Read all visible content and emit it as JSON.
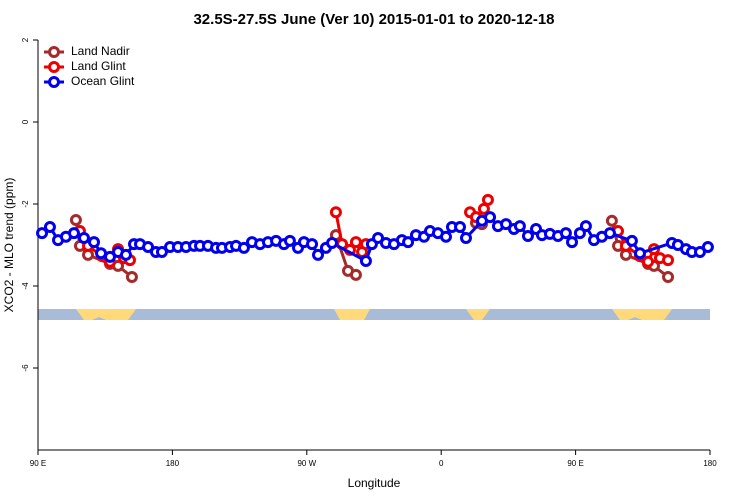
{
  "chart_data": {
    "type": "line",
    "title": "32.5S-27.5S June (Ver 10)   2015-01-01 to 2020-12-18",
    "xlabel": "Longitude",
    "ylabel": "XCO2 - MLO trend (ppm)",
    "xlim": [
      90,
      540
    ],
    "xticks": [
      {
        "value": 90,
        "label": "90 E"
      },
      180,
      {
        "value": 270,
        "label": "90 W"
      },
      {
        "value": 360,
        "label": "0"
      },
      {
        "value": 450,
        "label": "90 E"
      },
      {
        "value": 540,
        "label": "180"
      }
    ],
    "ylim": [
      -8,
      2
    ],
    "yticks": [
      -6,
      -4,
      -2,
      0,
      2
    ],
    "legend": "upper left",
    "series": [
      {
        "name": "Land Nadir",
        "color": "#a52a2a",
        "x": [
          115.4,
          118.1,
          123.5,
          138.2,
          143.6,
          152.9,
          null,
          289.5,
          297.6,
          302.9,
          null,
          383.3,
          387.3,
          null,
          474.3,
          478.4,
          483.7,
          498.5,
          502.5,
          511.9
        ],
        "values": [
          -2.39,
          -3.02,
          -3.24,
          -3.46,
          -3.51,
          -3.78,
          null,
          -2.76,
          -3.63,
          -3.73,
          null,
          -2.46,
          -2.49,
          null,
          -2.41,
          -3.02,
          -3.24,
          -3.46,
          -3.51,
          -3.78
        ]
      },
      {
        "name": "Land Glint",
        "color": "#ee0000",
        "x": [
          118.1,
          123.5,
          132.9,
          138.2,
          143.6,
          147.6,
          151.6,
          null,
          289.5,
          293.6,
          298.9,
          302.9,
          307,
          309.6,
          null,
          379.3,
          383.3,
          388.6,
          391.3,
          null,
          478.4,
          483.7,
          493.1,
          498.5,
          502.5,
          506.5,
          511.9
        ],
        "values": [
          -2.66,
          -3.02,
          -3.27,
          -3.41,
          -3.1,
          -3.32,
          -3.37,
          null,
          -2.2,
          -2.98,
          -3.12,
          -2.93,
          -3.17,
          -2.98,
          null,
          -2.2,
          -2.32,
          -2.12,
          -1.9,
          null,
          -2.66,
          -3.02,
          -3.27,
          -3.41,
          -3.1,
          -3.32,
          -3.37
        ]
      },
      {
        "name": "Ocean Glint",
        "color": "#0000ee",
        "x": [
          92.7,
          98,
          103.4,
          108.7,
          114.1,
          120.8,
          127.5,
          132.2,
          138.2,
          143.6,
          148.9,
          154.3,
          158.3,
          163.7,
          169,
          173,
          178.4,
          183.7,
          189.1,
          194.5,
          198.5,
          203.8,
          209.2,
          213.2,
          218.6,
          222.6,
          227.9,
          233.3,
          238.7,
          244,
          249.4,
          254.7,
          258.7,
          264.1,
          268.1,
          273.5,
          277.5,
          282.8,
          286.9,
          309.6,
          313.6,
          317.7,
          323,
          328.4,
          333.7,
          337.8,
          343.1,
          348.5,
          352.5,
          357.8,
          363.2,
          367.2,
          372.6,
          376.6,
          387.3,
          392.7,
          398,
          403.4,
          408.7,
          412.7,
          418.1,
          423.5,
          427.5,
          432.8,
          438.2,
          443.5,
          447.6,
          452.9,
          456.9,
          462.3,
          467.6,
          473,
          487.7,
          493.1,
          514.5,
          518.5,
          523.9,
          527.9,
          533.3,
          538.6
        ],
        "values": [
          -2.71,
          -2.56,
          -2.88,
          -2.8,
          -2.71,
          -2.83,
          -2.93,
          -3.2,
          -3.29,
          -3.17,
          -3.24,
          -2.98,
          -2.98,
          -3.05,
          -3.17,
          -3.17,
          -3.05,
          -3.05,
          -3.05,
          -3.02,
          -3.02,
          -3.02,
          -3.07,
          -3.07,
          -3.05,
          -3.02,
          -3.07,
          -2.93,
          -2.98,
          -2.93,
          -2.9,
          -2.98,
          -2.9,
          -3.07,
          -2.93,
          -2.98,
          -3.24,
          -3.07,
          -2.95,
          -3.39,
          -2.98,
          -2.83,
          -2.95,
          -2.98,
          -2.88,
          -2.93,
          -2.76,
          -2.8,
          -2.66,
          -2.71,
          -2.8,
          -2.56,
          -2.56,
          -2.83,
          -2.41,
          -2.32,
          -2.54,
          -2.49,
          -2.61,
          -2.54,
          -2.78,
          -2.61,
          -2.76,
          -2.73,
          -2.78,
          -2.71,
          -2.93,
          -2.71,
          -2.54,
          -2.88,
          -2.8,
          -2.71,
          -2.9,
          -3.2,
          -2.95,
          -3.0,
          -3.1,
          -3.17,
          -3.17,
          -3.05
        ]
      }
    ]
  }
}
